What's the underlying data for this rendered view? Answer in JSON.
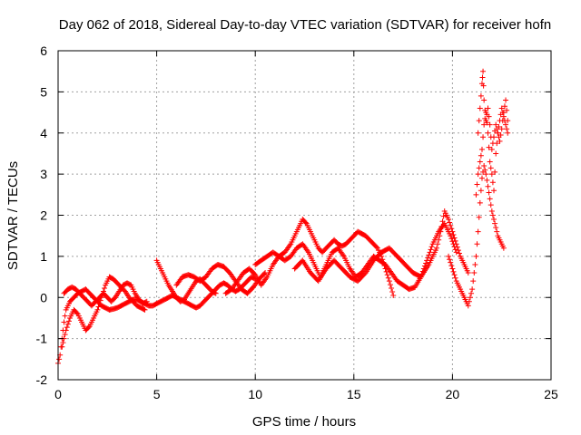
{
  "chart_data": {
    "type": "scatter",
    "title": "Day 062 of 2018, Sidereal Day-to-day VTEC variation (SDTVAR) for receiver hofn",
    "xlabel": "GPS time / hours",
    "ylabel": "SDTVAR / TECUs",
    "xlim": [
      0,
      25
    ],
    "ylim": [
      -2,
      6
    ],
    "x_ticks": [
      0,
      5,
      10,
      15,
      20,
      25
    ],
    "y_ticks": [
      -2,
      -1,
      0,
      1,
      2,
      3,
      4,
      5,
      6
    ],
    "x_tick_labels": [
      "0",
      "5",
      "10",
      "15",
      "20",
      "25"
    ],
    "y_tick_labels": [
      "-2",
      "-1",
      "0",
      "1",
      "2",
      "3",
      "4",
      "5",
      "6"
    ],
    "grid": true,
    "marker": "+",
    "color": "#ff0000",
    "series": [
      {
        "name": "trace-1",
        "x": [
          0.0,
          0.1,
          0.2,
          0.3,
          0.4,
          0.6,
          0.8,
          1.0,
          1.2,
          1.4,
          1.6,
          1.8,
          2.0,
          2.2,
          2.4,
          2.6,
          2.8,
          3.0,
          3.2,
          3.4,
          3.6,
          3.8,
          4.0,
          4.2,
          4.4,
          4.6,
          4.8,
          5.0,
          5.2,
          5.4,
          5.6,
          5.8,
          6.0,
          6.2,
          6.4,
          6.6,
          6.8,
          7.0,
          7.2,
          7.4,
          7.6,
          7.8,
          8.0,
          8.2,
          8.4,
          8.6,
          8.8,
          9.0,
          9.2,
          9.4,
          9.6,
          9.8,
          10.0
        ],
        "y": [
          -1.6,
          -1.4,
          -1.0,
          -0.6,
          -0.3,
          -0.1,
          0.0,
          0.1,
          0.15,
          0.2,
          0.1,
          0.0,
          -0.1,
          -0.2,
          -0.25,
          -0.3,
          -0.28,
          -0.25,
          -0.2,
          -0.15,
          -0.1,
          -0.05,
          -0.05,
          -0.1,
          -0.15,
          -0.2,
          -0.2,
          -0.15,
          -0.1,
          -0.05,
          0.0,
          0.05,
          0.0,
          -0.05,
          -0.1,
          -0.15,
          -0.2,
          -0.25,
          -0.2,
          -0.1,
          0.0,
          0.1,
          0.2,
          0.3,
          0.35,
          0.3,
          0.2,
          0.15,
          0.2,
          0.3,
          0.4,
          0.5,
          0.45
        ]
      },
      {
        "name": "trace-2",
        "x": [
          0.2,
          0.4,
          0.6,
          0.8,
          1.0,
          1.2,
          1.4,
          1.6,
          1.8,
          2.0,
          2.2,
          2.4,
          2.6,
          2.8,
          3.0,
          3.2,
          3.4,
          3.6,
          3.8,
          4.0,
          4.2,
          4.4
        ],
        "y": [
          -1.2,
          -0.8,
          -0.5,
          -0.3,
          -0.4,
          -0.6,
          -0.8,
          -0.7,
          -0.5,
          -0.3,
          0.0,
          0.3,
          0.5,
          0.45,
          0.35,
          0.25,
          0.15,
          0.0,
          -0.1,
          -0.2,
          -0.25,
          -0.3
        ]
      },
      {
        "name": "trace-3",
        "x": [
          0.3,
          0.5,
          0.7,
          0.9,
          1.1,
          1.3,
          1.5,
          1.7,
          1.9,
          2.1,
          2.3,
          2.5,
          2.7,
          2.9,
          3.1,
          3.3,
          3.5,
          3.7,
          3.9,
          4.1,
          4.3,
          4.5
        ],
        "y": [
          0.1,
          0.2,
          0.25,
          0.2,
          0.1,
          0.0,
          -0.1,
          -0.2,
          -0.1,
          0.0,
          0.1,
          0.0,
          -0.1,
          0.0,
          0.15,
          0.3,
          0.35,
          0.3,
          0.1,
          -0.05,
          -0.15,
          -0.1
        ]
      },
      {
        "name": "trace-4",
        "x": [
          5.0,
          5.2,
          5.4,
          5.6,
          5.8,
          6.0,
          6.2,
          6.4,
          6.6,
          6.8,
          7.0,
          7.2,
          7.4,
          7.6,
          7.8,
          8.0
        ],
        "y": [
          0.9,
          0.7,
          0.5,
          0.3,
          0.15,
          0.0,
          -0.1,
          -0.05,
          0.1,
          0.25,
          0.4,
          0.45,
          0.35,
          0.25,
          0.15,
          0.1
        ]
      },
      {
        "name": "trace-5",
        "x": [
          6.0,
          6.3,
          6.6,
          6.9,
          7.2,
          7.5,
          7.8,
          8.1,
          8.4,
          8.7,
          9.0,
          9.3,
          9.6,
          9.9,
          10.2,
          10.5
        ],
        "y": [
          0.3,
          0.5,
          0.55,
          0.5,
          0.4,
          0.5,
          0.7,
          0.8,
          0.75,
          0.6,
          0.4,
          0.2,
          0.1,
          0.25,
          0.45,
          0.6
        ]
      },
      {
        "name": "trace-6",
        "x": [
          8.5,
          8.8,
          9.1,
          9.4,
          9.7,
          10.0,
          10.3,
          10.6,
          10.9,
          11.2,
          11.5,
          11.8,
          12.1,
          12.4,
          12.6,
          12.8,
          13.0,
          13.2,
          13.4,
          13.6,
          13.8,
          14.0,
          14.2,
          14.4,
          14.6,
          14.8,
          15.0,
          15.2,
          15.4,
          15.6,
          15.8,
          16.0,
          16.2,
          16.4,
          16.6,
          16.8,
          17.0
        ],
        "y": [
          0.1,
          0.2,
          0.4,
          0.6,
          0.7,
          0.55,
          0.3,
          0.5,
          0.8,
          1.0,
          1.1,
          1.3,
          1.6,
          1.9,
          1.8,
          1.6,
          1.4,
          1.2,
          1.1,
          1.2,
          1.3,
          1.4,
          1.3,
          1.25,
          1.3,
          1.4,
          1.5,
          1.6,
          1.55,
          1.5,
          1.4,
          1.3,
          1.2,
          1.0,
          0.7,
          0.4,
          0.05
        ]
      },
      {
        "name": "trace-7",
        "x": [
          10.0,
          10.3,
          10.6,
          10.9,
          11.2,
          11.5,
          11.8,
          12.1,
          12.4,
          12.7,
          13.0,
          13.3,
          13.6,
          13.9,
          14.2,
          14.5,
          14.8,
          15.1,
          15.4,
          15.7,
          16.0,
          16.3,
          16.6,
          16.9,
          17.2,
          17.5,
          17.8,
          18.1,
          18.4,
          18.7,
          19.0,
          19.3,
          19.6,
          19.9,
          20.2
        ],
        "y": [
          0.8,
          0.9,
          1.0,
          1.1,
          1.0,
          0.9,
          1.0,
          1.2,
          1.3,
          1.1,
          0.8,
          0.5,
          0.8,
          1.1,
          1.2,
          1.0,
          0.7,
          0.5,
          0.6,
          0.8,
          1.0,
          0.9,
          0.8,
          0.6,
          0.4,
          0.3,
          0.2,
          0.25,
          0.5,
          0.9,
          1.3,
          1.6,
          1.8,
          1.5,
          1.1
        ]
      },
      {
        "name": "trace-8",
        "x": [
          12.0,
          12.4,
          12.8,
          13.2,
          13.6,
          14.0,
          14.4,
          14.8,
          15.2,
          15.6,
          16.0,
          16.4,
          16.8,
          17.2,
          17.6,
          18.0,
          18.4,
          18.8,
          19.2,
          19.4,
          19.6,
          19.8,
          20.0,
          20.2,
          20.4,
          20.6,
          20.8
        ],
        "y": [
          0.7,
          0.9,
          0.6,
          0.4,
          0.7,
          0.9,
          0.7,
          0.5,
          0.4,
          0.6,
          0.9,
          1.1,
          1.2,
          1.0,
          0.8,
          0.6,
          0.5,
          0.8,
          1.2,
          1.6,
          2.1,
          1.9,
          1.6,
          1.3,
          1.0,
          0.8,
          0.6
        ]
      },
      {
        "name": "trace-9",
        "x": [
          19.8,
          20.0,
          20.2,
          20.4,
          20.6,
          20.8,
          21.0,
          21.1,
          21.2,
          21.3,
          21.4,
          21.5,
          21.6,
          21.7,
          21.8,
          21.9,
          22.0,
          22.1,
          22.2,
          22.3,
          22.4,
          22.5,
          22.6
        ],
        "y": [
          1.0,
          0.7,
          0.4,
          0.2,
          0.0,
          -0.2,
          0.2,
          0.6,
          1.0,
          1.6,
          2.3,
          2.9,
          3.2,
          3.0,
          2.7,
          2.4,
          2.1,
          1.9,
          1.7,
          1.5,
          1.4,
          1.3,
          1.2
        ]
      },
      {
        "name": "trace-10",
        "x": [
          21.3,
          21.4,
          21.5,
          21.55,
          21.6,
          21.7,
          21.8,
          21.9,
          22.0,
          22.1,
          22.2,
          22.3,
          22.4,
          22.5,
          22.6,
          22.7,
          22.8
        ],
        "y": [
          4.0,
          4.6,
          5.2,
          5.5,
          4.8,
          4.3,
          4.6,
          4.2,
          3.6,
          3.9,
          4.2,
          4.0,
          3.8,
          4.1,
          4.5,
          4.8,
          4.3
        ]
      },
      {
        "name": "trace-11",
        "x": [
          21.2,
          21.3,
          21.4,
          21.5,
          21.6,
          21.7,
          21.8,
          21.9,
          22.0,
          22.1,
          22.2,
          22.3,
          22.4,
          22.5,
          22.6,
          22.7,
          22.8
        ],
        "y": [
          2.5,
          3.0,
          3.3,
          3.6,
          4.2,
          4.5,
          4.0,
          3.3,
          3.0,
          2.6,
          3.5,
          4.0,
          4.3,
          4.6,
          4.4,
          4.2,
          4.0
        ]
      }
    ]
  }
}
